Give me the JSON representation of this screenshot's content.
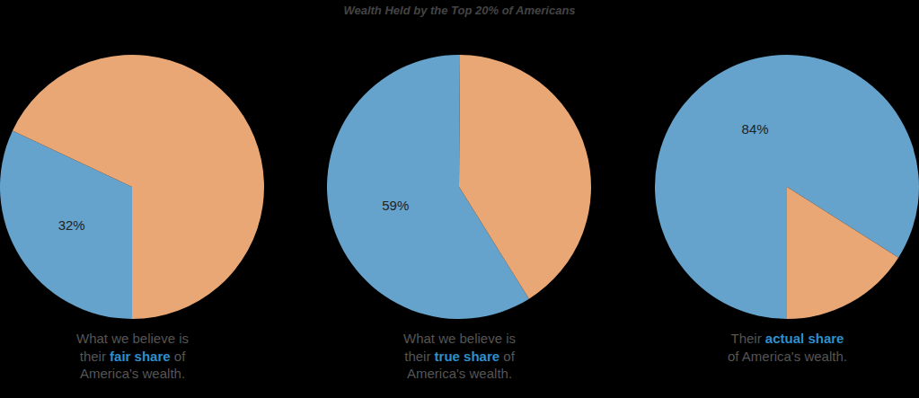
{
  "title": "Wealth Held by the Top 20% of Americans",
  "chart_data": [
    {
      "type": "pie",
      "values": [
        32,
        68
      ],
      "value_labels": [
        "32%",
        null
      ],
      "colors": [
        "#65a3cc",
        "#e8a774"
      ],
      "data_labels": true,
      "caption": {
        "text": "What we believe is their fair share of America's wealth.",
        "highlight": "fair share"
      }
    },
    {
      "type": "pie",
      "values": [
        59,
        41
      ],
      "value_labels": [
        "59%",
        null
      ],
      "colors": [
        "#65a3cc",
        "#e8a774"
      ],
      "data_labels": true,
      "caption": {
        "text": "What we believe is their true share of America's wealth.",
        "highlight": "true share"
      }
    },
    {
      "type": "pie",
      "values": [
        84,
        16
      ],
      "value_labels": [
        "84%",
        null
      ],
      "colors": [
        "#65a3cc",
        "#e8a774"
      ],
      "data_labels": true,
      "caption": {
        "text": "Their actual share of America's wealth.",
        "highlight": "actual share"
      }
    }
  ]
}
